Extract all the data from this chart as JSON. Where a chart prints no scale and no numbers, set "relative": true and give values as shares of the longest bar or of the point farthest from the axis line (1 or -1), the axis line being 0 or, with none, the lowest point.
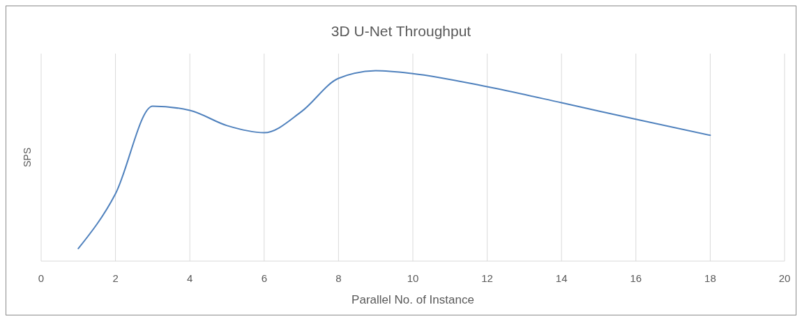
{
  "chart_data": {
    "type": "line",
    "title": "3D U-Net Throughput",
    "xlabel": "Parallel No. of Instance",
    "ylabel": "SPS",
    "relative": true,
    "grid": "x",
    "xlim": [
      0,
      20
    ],
    "xticks": [
      0,
      2,
      4,
      6,
      8,
      10,
      12,
      14,
      16,
      18,
      20
    ],
    "series": [
      {
        "color": "#4f81bd",
        "x": [
          1,
          2,
          3,
          4,
          5,
          6,
          7,
          8,
          9,
          10,
          12,
          14,
          16,
          18
        ],
        "values": [
          0.066,
          0.354,
          0.814,
          0.792,
          0.712,
          0.675,
          0.785,
          0.96,
          1,
          0.985,
          0.916,
          0.832,
          0.745,
          0.661
        ]
      }
    ]
  }
}
